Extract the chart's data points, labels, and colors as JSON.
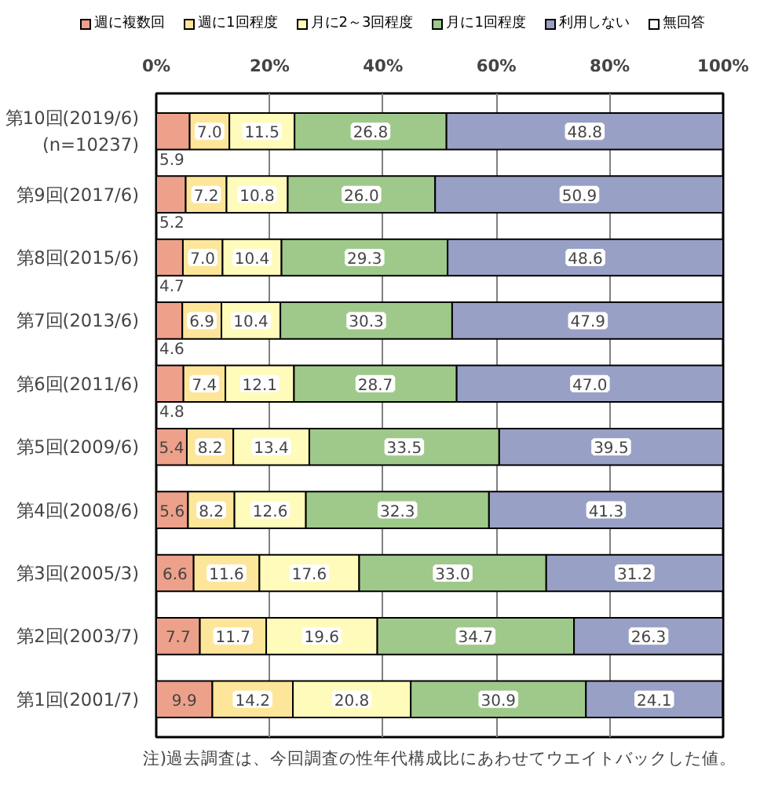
{
  "chart_data": {
    "type": "bar",
    "orientation": "horizontal",
    "stacked": true,
    "categories": [
      "第10回(2019/6)\n(n=10237)",
      "第9回(2017/6)",
      "第8回(2015/6)",
      "第7回(2013/6)",
      "第6回(2011/6)",
      "第5回(2009/6)",
      "第4回(2008/6)",
      "第3回(2005/3)",
      "第2回(2003/7)",
      "第1回(2001/7)"
    ],
    "series": [
      {
        "name": "週に複数回",
        "color": "#eda08a",
        "values": [
          5.9,
          5.2,
          4.7,
          4.6,
          4.8,
          5.4,
          5.6,
          6.6,
          7.7,
          9.9
        ],
        "value_labels": [
          "5.9",
          "5.2",
          "4.7",
          "4.6",
          "4.8",
          "5.4",
          "5.6",
          "6.6",
          "7.7",
          "9.9"
        ]
      },
      {
        "name": "週に1回程度",
        "color": "#fde699",
        "values": [
          7.0,
          7.2,
          7.0,
          6.9,
          7.4,
          8.2,
          8.2,
          11.6,
          11.7,
          14.2
        ],
        "value_labels": [
          "7.0",
          "7.2",
          "7.0",
          "6.9",
          "7.4",
          "8.2",
          "8.2",
          "11.6",
          "11.7",
          "14.2"
        ]
      },
      {
        "name": "月に2～3回程度",
        "color": "#fffbba",
        "values": [
          11.5,
          10.8,
          10.4,
          10.4,
          12.1,
          13.4,
          12.6,
          17.6,
          19.6,
          20.8
        ],
        "value_labels": [
          "11.5",
          "10.8",
          "10.4",
          "10.4",
          "12.1",
          "13.4",
          "12.6",
          "17.6",
          "19.6",
          "20.8"
        ]
      },
      {
        "name": "月に1回程度",
        "color": "#9fc98a",
        "values": [
          26.8,
          26.0,
          29.3,
          30.3,
          28.7,
          33.5,
          32.3,
          33.0,
          34.7,
          30.9
        ],
        "value_labels": [
          "26.8",
          "26.0",
          "29.3",
          "30.3",
          "28.7",
          "33.5",
          "32.3",
          "33.0",
          "34.7",
          "30.9"
        ]
      },
      {
        "name": "利用しない",
        "color": "#99a0c6",
        "values": [
          48.8,
          50.9,
          48.6,
          47.9,
          47.0,
          39.5,
          41.3,
          31.2,
          26.3,
          24.1
        ],
        "value_labels": [
          "48.8",
          "50.9",
          "48.6",
          "47.9",
          "47.0",
          "39.5",
          "41.3",
          "31.2",
          "26.3",
          "24.1"
        ]
      },
      {
        "name": "無回答",
        "color": "#ffffff",
        "values": [
          null,
          null,
          null,
          null,
          null,
          null,
          null,
          null,
          null,
          null
        ]
      }
    ],
    "xlim": [
      0,
      100
    ],
    "xticks": [
      {
        "value": 0,
        "label": "0%"
      },
      {
        "value": 20,
        "label": "20%"
      },
      {
        "value": 40,
        "label": "40%"
      },
      {
        "value": 60,
        "label": "60%"
      },
      {
        "value": 80,
        "label": "80%"
      },
      {
        "value": 100,
        "label": "100%"
      }
    ],
    "grid": "x",
    "legend": "top",
    "annotations": [
      "注)過去調査は、今回調査の性年代構成比にあわせてウエイトバックした値。"
    ]
  }
}
